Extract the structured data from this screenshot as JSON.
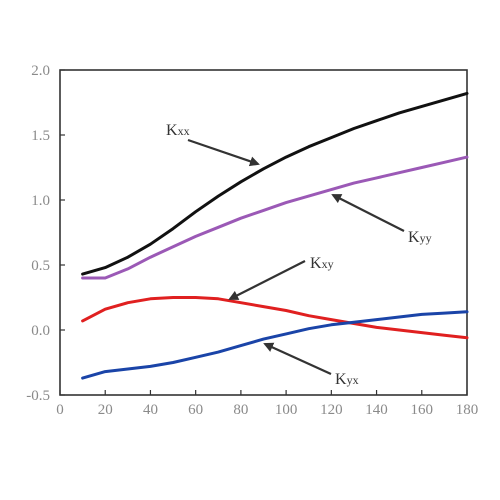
{
  "chart_data": {
    "type": "line",
    "title": "",
    "xlabel": "",
    "ylabel": "",
    "xlim": [
      0,
      180
    ],
    "ylim": [
      -0.5,
      2.0
    ],
    "x_ticks": [
      "0",
      "20",
      "40",
      "60",
      "80",
      "100",
      "120",
      "140",
      "160",
      "180"
    ],
    "y_ticks": [
      "-0.5",
      "0.0",
      "0.5",
      "1.0",
      "1.5",
      "2.0"
    ],
    "grid": false,
    "legend": "none",
    "series": [
      {
        "name": "Kxx",
        "color": "#111111",
        "x": [
          10,
          20,
          30,
          40,
          50,
          60,
          70,
          80,
          90,
          100,
          110,
          120,
          130,
          140,
          150,
          160,
          170,
          180
        ],
        "y": [
          0.43,
          0.48,
          0.56,
          0.66,
          0.78,
          0.91,
          1.03,
          1.14,
          1.24,
          1.33,
          1.41,
          1.48,
          1.55,
          1.61,
          1.67,
          1.72,
          1.77,
          1.82
        ]
      },
      {
        "name": "Kyy",
        "color": "#9b59b6",
        "x": [
          10,
          20,
          30,
          40,
          50,
          60,
          70,
          80,
          90,
          100,
          110,
          120,
          130,
          140,
          150,
          160,
          170,
          180
        ],
        "y": [
          0.4,
          0.4,
          0.47,
          0.56,
          0.64,
          0.72,
          0.79,
          0.86,
          0.92,
          0.98,
          1.03,
          1.08,
          1.13,
          1.17,
          1.21,
          1.25,
          1.29,
          1.33
        ]
      },
      {
        "name": "Kxy",
        "color": "#e02020",
        "x": [
          10,
          20,
          30,
          40,
          50,
          60,
          70,
          80,
          90,
          100,
          110,
          120,
          130,
          140,
          150,
          160,
          170,
          180
        ],
        "y": [
          0.07,
          0.16,
          0.21,
          0.24,
          0.25,
          0.25,
          0.24,
          0.21,
          0.18,
          0.15,
          0.11,
          0.08,
          0.05,
          0.02,
          0.0,
          -0.02,
          -0.04,
          -0.06
        ]
      },
      {
        "name": "Kyx",
        "color": "#1a44a8",
        "x": [
          10,
          20,
          30,
          40,
          50,
          60,
          70,
          80,
          90,
          100,
          110,
          120,
          130,
          140,
          150,
          160,
          170,
          180
        ],
        "y": [
          -0.37,
          -0.32,
          -0.3,
          -0.28,
          -0.25,
          -0.21,
          -0.17,
          -0.12,
          -0.07,
          -0.03,
          0.01,
          0.04,
          0.06,
          0.08,
          0.1,
          0.12,
          0.13,
          0.14
        ]
      }
    ],
    "annotations": [
      {
        "series": "Kxx",
        "main": "K",
        "sub": "xx"
      },
      {
        "series": "Kyy",
        "main": "K",
        "sub": "yy"
      },
      {
        "series": "Kxy",
        "main": "K",
        "sub": "xy"
      },
      {
        "series": "Kyx",
        "main": "K",
        "sub": "yx"
      }
    ]
  }
}
